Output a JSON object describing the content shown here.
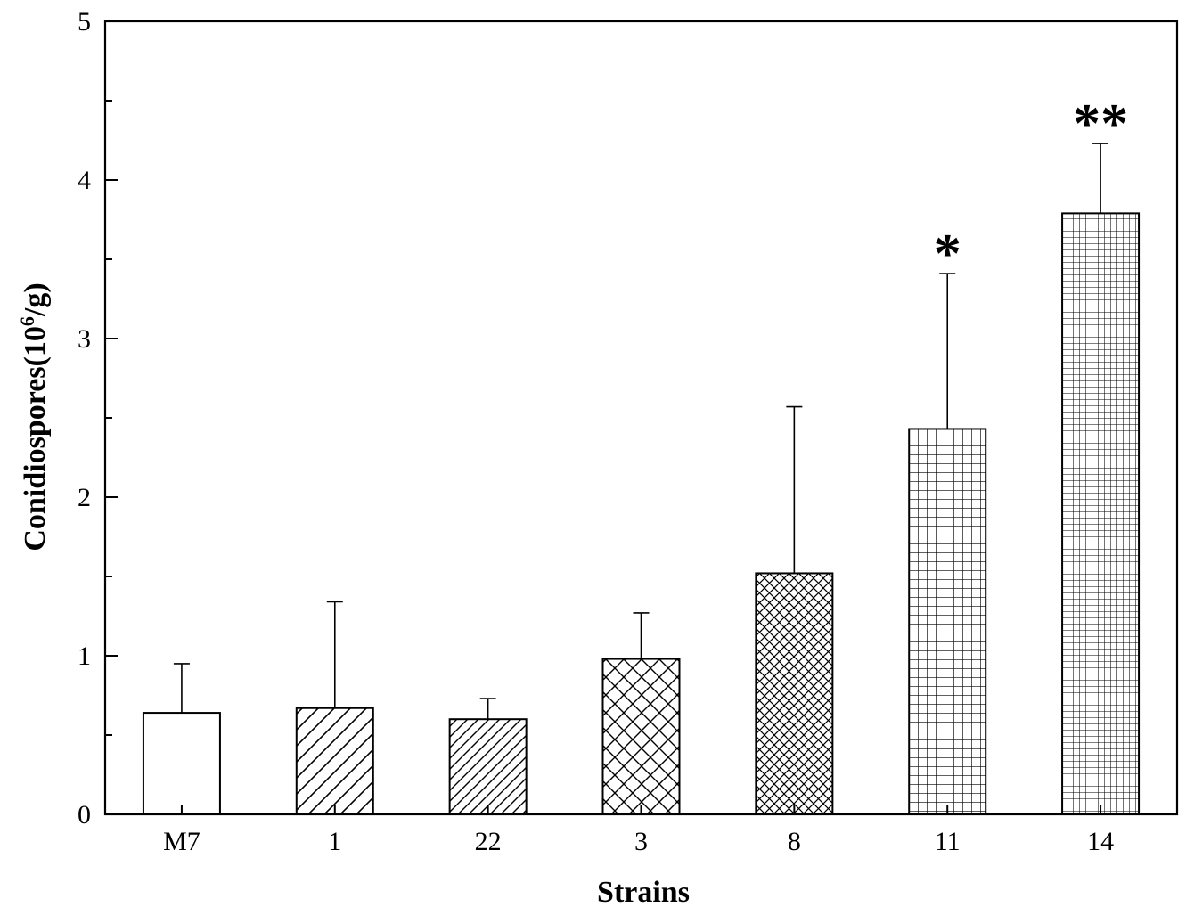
{
  "chart_data": {
    "type": "bar",
    "title": "",
    "xlabel": "Strains",
    "ylabel": {
      "base": "Conidiospores(10",
      "sup": "6",
      "tail": "/g)"
    },
    "categories": [
      "M7",
      "1",
      "22",
      "3",
      "8",
      "11",
      "14"
    ],
    "values": [
      0.64,
      0.67,
      0.6,
      0.98,
      1.52,
      2.43,
      3.79
    ],
    "errors": [
      0.31,
      0.67,
      0.13,
      0.29,
      1.05,
      0.98,
      0.44
    ],
    "patterns": [
      "none",
      "diag-wide",
      "diag-narrow",
      "cross-wide",
      "cross-narrow",
      "grid-wide",
      "grid-narrow"
    ],
    "annotations": [
      "",
      "",
      "",
      "",
      "",
      "*",
      "**"
    ],
    "ylim": [
      0,
      5
    ],
    "yticks": [
      "0",
      "1",
      "2",
      "3",
      "4",
      "5"
    ],
    "grid": false,
    "legend": "none"
  }
}
